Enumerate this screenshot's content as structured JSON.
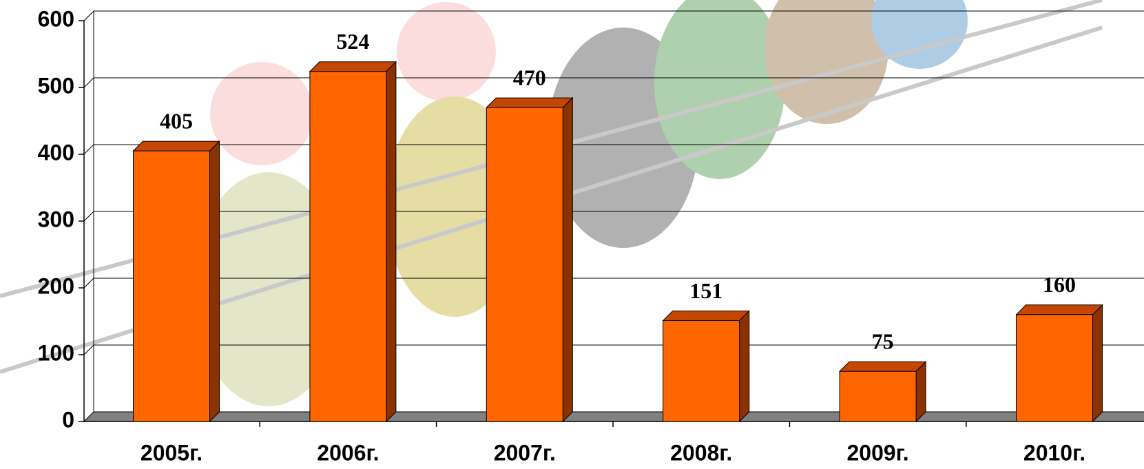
{
  "chart_data": {
    "type": "bar",
    "categories": [
      "2005г.",
      "2006г.",
      "2007г.",
      "2008г.",
      "2009г.",
      "2010г."
    ],
    "values": [
      405,
      524,
      470,
      151,
      75,
      160
    ],
    "color": "#ff6600",
    "ylim": [
      0,
      600
    ],
    "yticks": [
      0,
      100,
      200,
      300,
      400,
      500,
      600
    ],
    "grid": true
  }
}
